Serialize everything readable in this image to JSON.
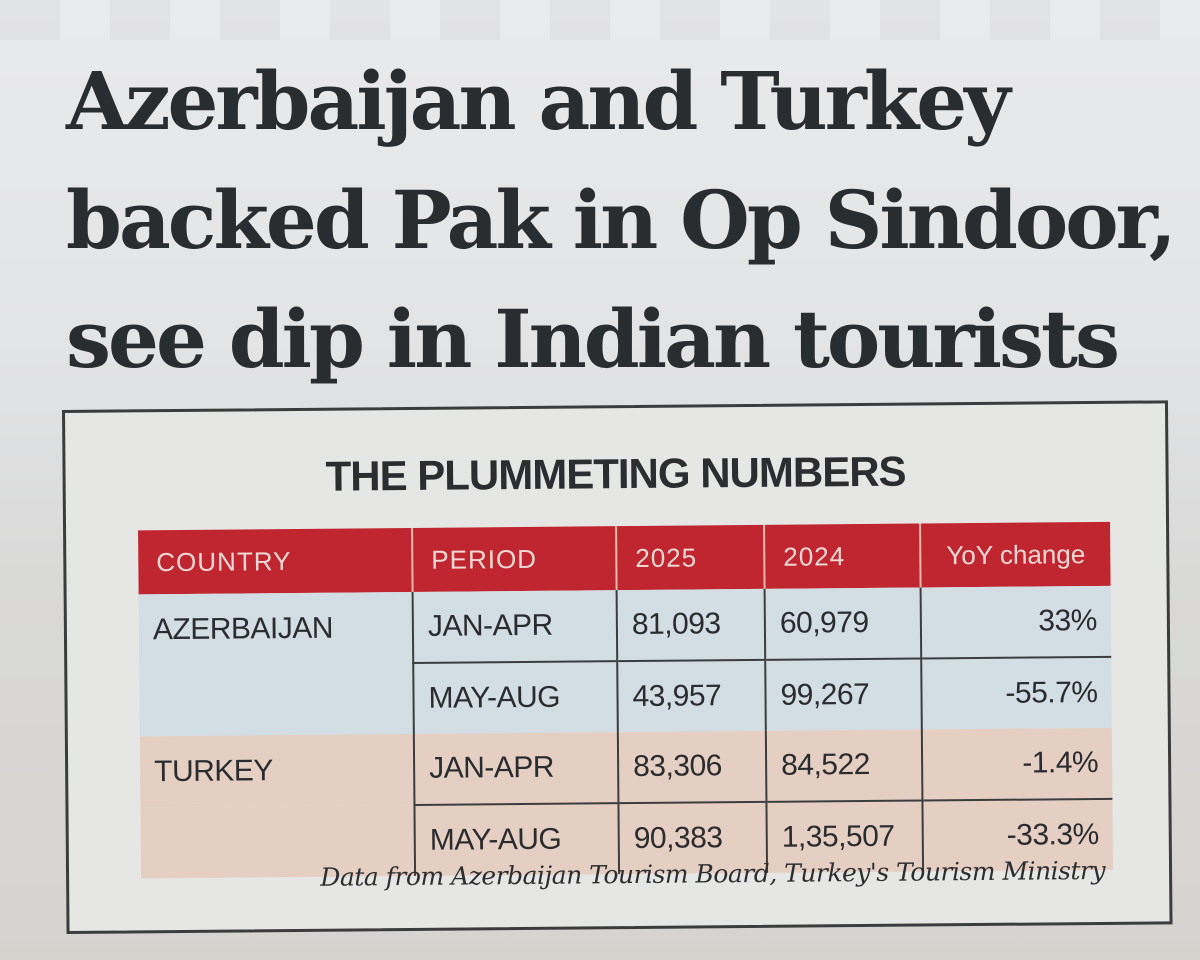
{
  "headline": {
    "line1": "Azerbaijan and Turkey",
    "line2": "backed Pak in Op Sindoor,",
    "line3": "see dip in Indian tourists"
  },
  "infobox": {
    "title": "THE PLUMMETING NUMBERS",
    "columns": [
      "COUNTRY",
      "PERIOD",
      "2025",
      "2024",
      "YoY change"
    ],
    "rows": [
      {
        "country": "AZERBAIJAN",
        "period": "JAN-APR",
        "v2025": "81,093",
        "v2024": "60,979",
        "yoy": "33%"
      },
      {
        "country": "",
        "period": "MAY-AUG",
        "v2025": "43,957",
        "v2024": "99,267",
        "yoy": "-55.7%"
      },
      {
        "country": "TURKEY",
        "period": "JAN-APR",
        "v2025": "83,306",
        "v2024": "84,522",
        "yoy": "-1.4%"
      },
      {
        "country": "",
        "period": "MAY-AUG",
        "v2025": "90,383",
        "v2024": "1,35,507",
        "yoy": "-33.3%"
      }
    ],
    "source": "Data from Azerbaijan Tourism Board, Turkey's Tourism Ministry"
  },
  "colors": {
    "header_red": "#c0262f",
    "azerbaijan_row": "#d3dde4",
    "turkey_row": "#e5cfc3",
    "ink": "#2a2d30"
  }
}
